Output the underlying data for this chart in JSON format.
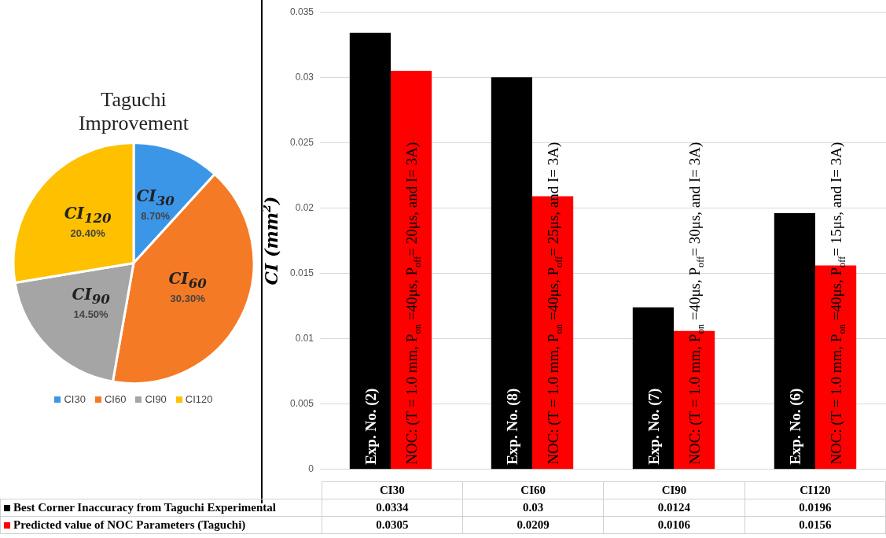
{
  "chart_data": [
    {
      "type": "pie",
      "title": "Taguchi Improvement",
      "categories": [
        "CI30",
        "CI60",
        "CI90",
        "CI120"
      ],
      "values": [
        8.7,
        30.3,
        14.5,
        20.4
      ],
      "colors": [
        "#3c96e8",
        "#f47a25",
        "#a5a5a5",
        "#ffc000"
      ],
      "value_labels": [
        "8.70%",
        "30.30%",
        "14.50%",
        "20.40%"
      ],
      "annotations": [
        "CI$_{30}$",
        "CI$_{60}$",
        "CI$_{90}$",
        "CI$_{120}$"
      ],
      "legend": "bottom"
    },
    {
      "type": "bar",
      "categories": [
        "CI30",
        "CI60",
        "CI90",
        "CI120"
      ],
      "series": [
        {
          "name": "Best Corner Inaccuracy from Taguchi Experimental",
          "color": "#000000",
          "values": [
            0.0334,
            0.03,
            0.0124,
            0.0196
          ]
        },
        {
          "name": "Predicted value of NOC Parameters (Taguchi)",
          "color": "#ff0000",
          "values": [
            0.0305,
            0.0209,
            0.0106,
            0.0156
          ]
        }
      ],
      "ylabel": "CI (mm$^{2}$)",
      "ylim": [
        0,
        0.035
      ],
      "yticks": [
        0,
        0.005,
        0.01,
        0.015,
        0.02,
        0.025,
        0.03,
        0.035
      ],
      "grid": "y",
      "legend": "bottom",
      "data_labels": true,
      "annotations": [
        {
          "text": "Exp. No. (2)",
          "x": "CI30",
          "y": 0
        },
        {
          "text": "NOC: (T = 1.0 mm, P$_{on}$ =40μs, P$_{off}$= 20μs, and I= 3A)",
          "x": "CI30",
          "y": 0
        },
        {
          "text": "Exp. No. (8)",
          "x": "CI60",
          "y": 0
        },
        {
          "text": "NOC: (T = 1.0 mm, P$_{on}$ =40μs, P$_{off}$= 25μs, and I= 3A)",
          "x": "CI60",
          "y": 0
        },
        {
          "text": "Exp. No. (7)",
          "x": "CI90",
          "y": 0
        },
        {
          "text": "NOC: (T = 1.0 mm, P$_{on}$ =40μs, P$_{off}$= 30μs, and I= 3A)",
          "x": "CI90",
          "y": 0
        },
        {
          "text": "Exp. No. (6)",
          "x": "CI120",
          "y": 0
        },
        {
          "text": "NOC: (T = 1.0 mm, P$_{on}$ =40μs, P$_{off}$= 15μs, and I= 3A)",
          "x": "CI120",
          "y": 0
        }
      ]
    }
  ]
}
